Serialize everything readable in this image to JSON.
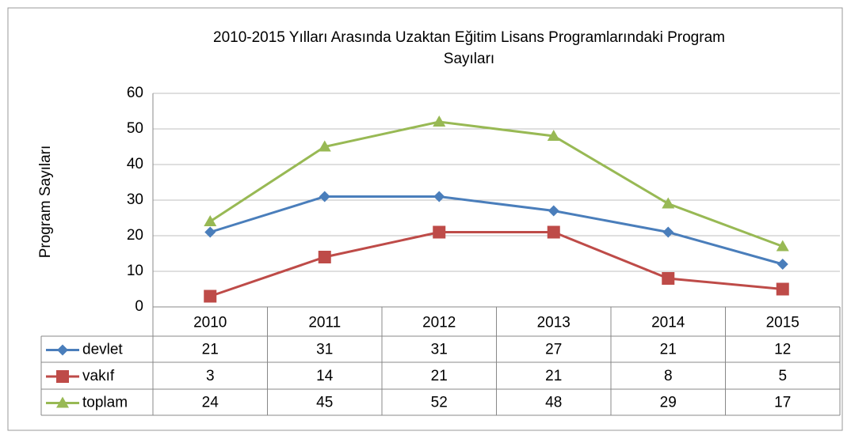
{
  "chart_data": {
    "type": "line",
    "title": [
      "2010-2015 Yılları Arasında Uzaktan Eğitim Lisans Programlarındaki Program",
      "Sayıları"
    ],
    "y_label": "Program Sayıları",
    "categories": [
      "2010",
      "2011",
      "2012",
      "2013",
      "2014",
      "2015"
    ],
    "series": [
      {
        "name": "devlet",
        "color": "#4a7ebb",
        "values": [
          21,
          31,
          31,
          27,
          21,
          12
        ]
      },
      {
        "name": "vakıf",
        "color": "#be4b48",
        "values": [
          3,
          14,
          21,
          21,
          8,
          5
        ]
      },
      {
        "name": "toplam",
        "color": "#98b954",
        "values": [
          24,
          45,
          52,
          48,
          29,
          17
        ]
      }
    ],
    "ylim": [
      0,
      60
    ],
    "yticks": [
      0,
      10,
      20,
      30,
      40,
      50,
      60
    ],
    "grid": true,
    "data_table": true
  }
}
